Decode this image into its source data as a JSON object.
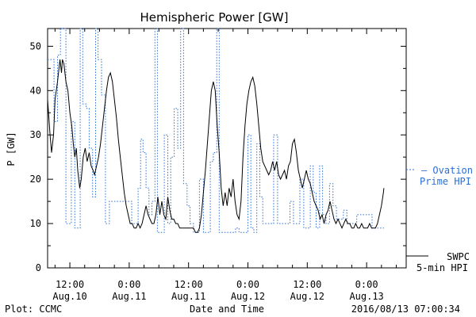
{
  "chart_data": {
    "type": "line",
    "title": "Hemispheric Power [GW]",
    "xlabel": "Date and Time",
    "ylabel": "P [GW]",
    "ylim": [
      0,
      54
    ],
    "yticks": [
      0,
      10,
      20,
      30,
      40,
      50
    ],
    "x_unit": "hours since Aug.10 00:00",
    "xlim": [
      7.5,
      80
    ],
    "xticks": [
      {
        "x": 12,
        "time": "12:00",
        "date": "Aug.10"
      },
      {
        "x": 24,
        "time": "0:00",
        "date": "Aug.11"
      },
      {
        "x": 36,
        "time": "12:00",
        "date": "Aug.11"
      },
      {
        "x": 48,
        "time": "0:00",
        "date": "Aug.12"
      },
      {
        "x": 60,
        "time": "12:00",
        "date": "Aug.12"
      },
      {
        "x": 72,
        "time": "0:00",
        "date": "Aug.13"
      }
    ],
    "grid": false,
    "series": [
      {
        "name": "Ovation Prime HPI",
        "style": "dotted",
        "color": "#2a6fd6",
        "legend_line1": "— Ovation",
        "legend_line2": "Prime HPI",
        "points": [
          [
            7.5,
            47
          ],
          [
            8,
            47
          ],
          [
            8.8,
            33
          ],
          [
            9.5,
            48
          ],
          [
            10.1,
            54
          ],
          [
            10.8,
            54
          ],
          [
            11.2,
            10
          ],
          [
            11.7,
            10
          ],
          [
            12.3,
            33
          ],
          [
            13.0,
            9
          ],
          [
            13.6,
            9
          ],
          [
            14.1,
            54
          ],
          [
            14.6,
            37
          ],
          [
            15.3,
            36
          ],
          [
            15.9,
            27
          ],
          [
            16.6,
            16
          ],
          [
            17.2,
            54
          ],
          [
            17.7,
            47
          ],
          [
            18.4,
            39
          ],
          [
            19.2,
            10
          ],
          [
            20.0,
            15
          ],
          [
            23.0,
            15
          ],
          [
            24.5,
            10
          ],
          [
            25.3,
            10
          ],
          [
            25.8,
            18
          ],
          [
            26.3,
            29
          ],
          [
            26.8,
            26
          ],
          [
            27.4,
            18
          ],
          [
            28.0,
            12
          ],
          [
            28.6,
            15
          ],
          [
            29.2,
            54
          ],
          [
            29.7,
            8
          ],
          [
            30.5,
            8
          ],
          [
            31.1,
            30
          ],
          [
            31.8,
            10
          ],
          [
            32.4,
            25
          ],
          [
            33.1,
            36
          ],
          [
            33.8,
            27
          ],
          [
            34.4,
            54
          ],
          [
            35.0,
            19
          ],
          [
            35.7,
            14
          ],
          [
            36.3,
            10
          ],
          [
            37.0,
            8
          ],
          [
            37.6,
            8
          ],
          [
            38.2,
            20
          ],
          [
            39.0,
            8
          ],
          [
            39.8,
            8
          ],
          [
            40.4,
            24
          ],
          [
            41.0,
            26
          ],
          [
            41.7,
            54
          ],
          [
            42.2,
            8
          ],
          [
            43.0,
            8
          ],
          [
            44.5,
            8
          ],
          [
            45.5,
            9
          ],
          [
            46.2,
            8
          ],
          [
            47.2,
            8
          ],
          [
            48.0,
            30
          ],
          [
            48.6,
            9
          ],
          [
            49.2,
            8
          ],
          [
            49.8,
            28
          ],
          [
            50.4,
            16
          ],
          [
            51.0,
            10
          ],
          [
            52.5,
            10
          ],
          [
            53.2,
            30
          ],
          [
            54.0,
            10
          ],
          [
            55.0,
            10
          ],
          [
            56.5,
            15
          ],
          [
            57.2,
            10
          ],
          [
            58.5,
            20
          ],
          [
            59.3,
            9
          ],
          [
            60.0,
            9
          ],
          [
            60.6,
            23
          ],
          [
            61.2,
            17
          ],
          [
            61.8,
            9
          ],
          [
            62.5,
            23
          ],
          [
            63.1,
            12
          ],
          [
            63.8,
            10
          ],
          [
            64.5,
            19
          ],
          [
            65.2,
            14
          ],
          [
            65.9,
            11
          ],
          [
            66.6,
            11
          ],
          [
            67.3,
            13
          ],
          [
            68.0,
            10
          ],
          [
            69.0,
            10
          ],
          [
            70.0,
            12
          ],
          [
            72.5,
            12
          ],
          [
            73.1,
            9
          ],
          [
            74.5,
            9
          ],
          [
            75.5,
            9
          ]
        ]
      },
      {
        "name": "SWPC 5-min HPI",
        "style": "solid",
        "color": "#000000",
        "legend_line1": "SWPC",
        "legend_line2": "5-min HPI",
        "points": [
          [
            7.5,
            38
          ],
          [
            8.0,
            30
          ],
          [
            8.3,
            26
          ],
          [
            8.7,
            30
          ],
          [
            9.0,
            38
          ],
          [
            9.5,
            42
          ],
          [
            10.0,
            47
          ],
          [
            10.3,
            44
          ],
          [
            10.5,
            47
          ],
          [
            10.8,
            46
          ],
          [
            11.2,
            42
          ],
          [
            11.6,
            40
          ],
          [
            12.0,
            35
          ],
          [
            12.4,
            32
          ],
          [
            12.7,
            28
          ],
          [
            13.0,
            25
          ],
          [
            13.3,
            27
          ],
          [
            13.6,
            22
          ],
          [
            14.0,
            18
          ],
          [
            14.3,
            20
          ],
          [
            14.7,
            25
          ],
          [
            15.1,
            27
          ],
          [
            15.5,
            24
          ],
          [
            15.9,
            26
          ],
          [
            16.3,
            23
          ],
          [
            16.7,
            22
          ],
          [
            17.0,
            21
          ],
          [
            17.4,
            23
          ],
          [
            17.8,
            25
          ],
          [
            18.2,
            28
          ],
          [
            18.6,
            32
          ],
          [
            19.0,
            36
          ],
          [
            19.4,
            40
          ],
          [
            19.8,
            43
          ],
          [
            20.2,
            44
          ],
          [
            20.6,
            42
          ],
          [
            21.0,
            38
          ],
          [
            21.4,
            34
          ],
          [
            21.8,
            29
          ],
          [
            22.2,
            25
          ],
          [
            22.6,
            21
          ],
          [
            23.0,
            17
          ],
          [
            23.4,
            14
          ],
          [
            23.8,
            12
          ],
          [
            24.2,
            10
          ],
          [
            24.6,
            10
          ],
          [
            25.0,
            9
          ],
          [
            25.4,
            9
          ],
          [
            25.8,
            10
          ],
          [
            26.2,
            9
          ],
          [
            26.6,
            10
          ],
          [
            27.0,
            12
          ],
          [
            27.4,
            14
          ],
          [
            27.8,
            12
          ],
          [
            28.2,
            11
          ],
          [
            28.6,
            10
          ],
          [
            29.0,
            10
          ],
          [
            29.4,
            12
          ],
          [
            29.8,
            16
          ],
          [
            30.2,
            12
          ],
          [
            30.6,
            15
          ],
          [
            31.0,
            12
          ],
          [
            31.4,
            11
          ],
          [
            31.8,
            16
          ],
          [
            32.2,
            13
          ],
          [
            32.6,
            11
          ],
          [
            33.0,
            11
          ],
          [
            33.4,
            10
          ],
          [
            33.8,
            10
          ],
          [
            34.2,
            9
          ],
          [
            34.6,
            9
          ],
          [
            35.0,
            9
          ],
          [
            35.4,
            9
          ],
          [
            35.8,
            9
          ],
          [
            36.2,
            9
          ],
          [
            36.6,
            9
          ],
          [
            37.0,
            9
          ],
          [
            37.4,
            8
          ],
          [
            37.8,
            8
          ],
          [
            38.2,
            9
          ],
          [
            38.6,
            12
          ],
          [
            39.0,
            17
          ],
          [
            39.4,
            22
          ],
          [
            39.8,
            28
          ],
          [
            40.2,
            34
          ],
          [
            40.6,
            40
          ],
          [
            41.0,
            42
          ],
          [
            41.4,
            40
          ],
          [
            41.8,
            32
          ],
          [
            42.2,
            26
          ],
          [
            42.6,
            18
          ],
          [
            43.0,
            14
          ],
          [
            43.4,
            17
          ],
          [
            43.8,
            14
          ],
          [
            44.2,
            18
          ],
          [
            44.6,
            16
          ],
          [
            45.0,
            20
          ],
          [
            45.4,
            15
          ],
          [
            45.8,
            12
          ],
          [
            46.2,
            11
          ],
          [
            46.6,
            15
          ],
          [
            47.0,
            25
          ],
          [
            47.4,
            32
          ],
          [
            47.8,
            37
          ],
          [
            48.2,
            40
          ],
          [
            48.6,
            42
          ],
          [
            49.0,
            43
          ],
          [
            49.4,
            41
          ],
          [
            49.8,
            37
          ],
          [
            50.2,
            32
          ],
          [
            50.6,
            27
          ],
          [
            51.0,
            24
          ],
          [
            51.4,
            23
          ],
          [
            51.8,
            22
          ],
          [
            52.2,
            21
          ],
          [
            52.6,
            22
          ],
          [
            53.0,
            24
          ],
          [
            53.4,
            22
          ],
          [
            53.8,
            24
          ],
          [
            54.2,
            21
          ],
          [
            54.6,
            20
          ],
          [
            55.0,
            21
          ],
          [
            55.4,
            22
          ],
          [
            55.8,
            20
          ],
          [
            56.2,
            23
          ],
          [
            56.6,
            24
          ],
          [
            57.0,
            28
          ],
          [
            57.4,
            29
          ],
          [
            57.8,
            26
          ],
          [
            58.2,
            22
          ],
          [
            58.6,
            20
          ],
          [
            59.0,
            18
          ],
          [
            59.4,
            20
          ],
          [
            59.8,
            22
          ],
          [
            60.2,
            20
          ],
          [
            60.6,
            19
          ],
          [
            61.0,
            17
          ],
          [
            61.4,
            15
          ],
          [
            61.8,
            14
          ],
          [
            62.2,
            13
          ],
          [
            62.6,
            11
          ],
          [
            63.0,
            12
          ],
          [
            63.4,
            10
          ],
          [
            63.8,
            12
          ],
          [
            64.2,
            13
          ],
          [
            64.6,
            15
          ],
          [
            65.0,
            13
          ],
          [
            65.4,
            11
          ],
          [
            65.8,
            10
          ],
          [
            66.2,
            11
          ],
          [
            66.6,
            10
          ],
          [
            67.0,
            9
          ],
          [
            67.4,
            10
          ],
          [
            67.8,
            11
          ],
          [
            68.2,
            10
          ],
          [
            68.6,
            10
          ],
          [
            69.0,
            9
          ],
          [
            69.4,
            9
          ],
          [
            69.8,
            10
          ],
          [
            70.2,
            9
          ],
          [
            70.6,
            9
          ],
          [
            71.0,
            10
          ],
          [
            71.4,
            9
          ],
          [
            71.8,
            9
          ],
          [
            72.2,
            9
          ],
          [
            72.6,
            10
          ],
          [
            73.0,
            9
          ],
          [
            73.4,
            9
          ],
          [
            73.8,
            9
          ],
          [
            74.2,
            10
          ],
          [
            74.6,
            12
          ],
          [
            75.0,
            14
          ],
          [
            75.4,
            17
          ],
          [
            75.5,
            18
          ]
        ]
      }
    ]
  },
  "footer": {
    "left": "Plot: CCMC",
    "right": "2016/08/13 07:00:34"
  }
}
